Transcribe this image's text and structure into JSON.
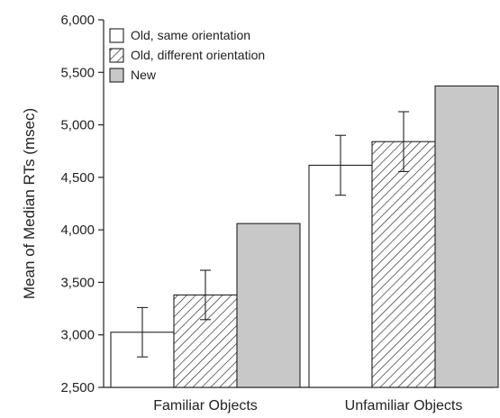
{
  "chart_data": {
    "type": "bar",
    "title": "",
    "xlabel": "",
    "ylabel": "Mean of Median RTs (msec)",
    "ylim": [
      2500,
      6000
    ],
    "yticks": [
      2500,
      3000,
      3500,
      4000,
      4500,
      5000,
      5500,
      6000
    ],
    "ytick_labels": [
      "2,500",
      "3,000",
      "3,500",
      "4,000",
      "4,500",
      "5,000",
      "5,500",
      "6,000"
    ],
    "categories": [
      "Familiar Objects",
      "Unfamiliar Objects"
    ],
    "legend_position": "top-left",
    "grid": false,
    "series": [
      {
        "name": "Old, same orientation",
        "fill": "#ffffff",
        "pattern": "none",
        "values": [
          3025,
          4615
        ],
        "error": [
          235,
          285
        ]
      },
      {
        "name": "Old, different orientation",
        "fill": "#ffffff",
        "pattern": "hatch",
        "values": [
          3380,
          4840
        ],
        "error": [
          235,
          285
        ]
      },
      {
        "name": "New",
        "fill": "#c8c8c8",
        "pattern": "none",
        "values": [
          4060,
          5370
        ],
        "error": null
      }
    ]
  }
}
